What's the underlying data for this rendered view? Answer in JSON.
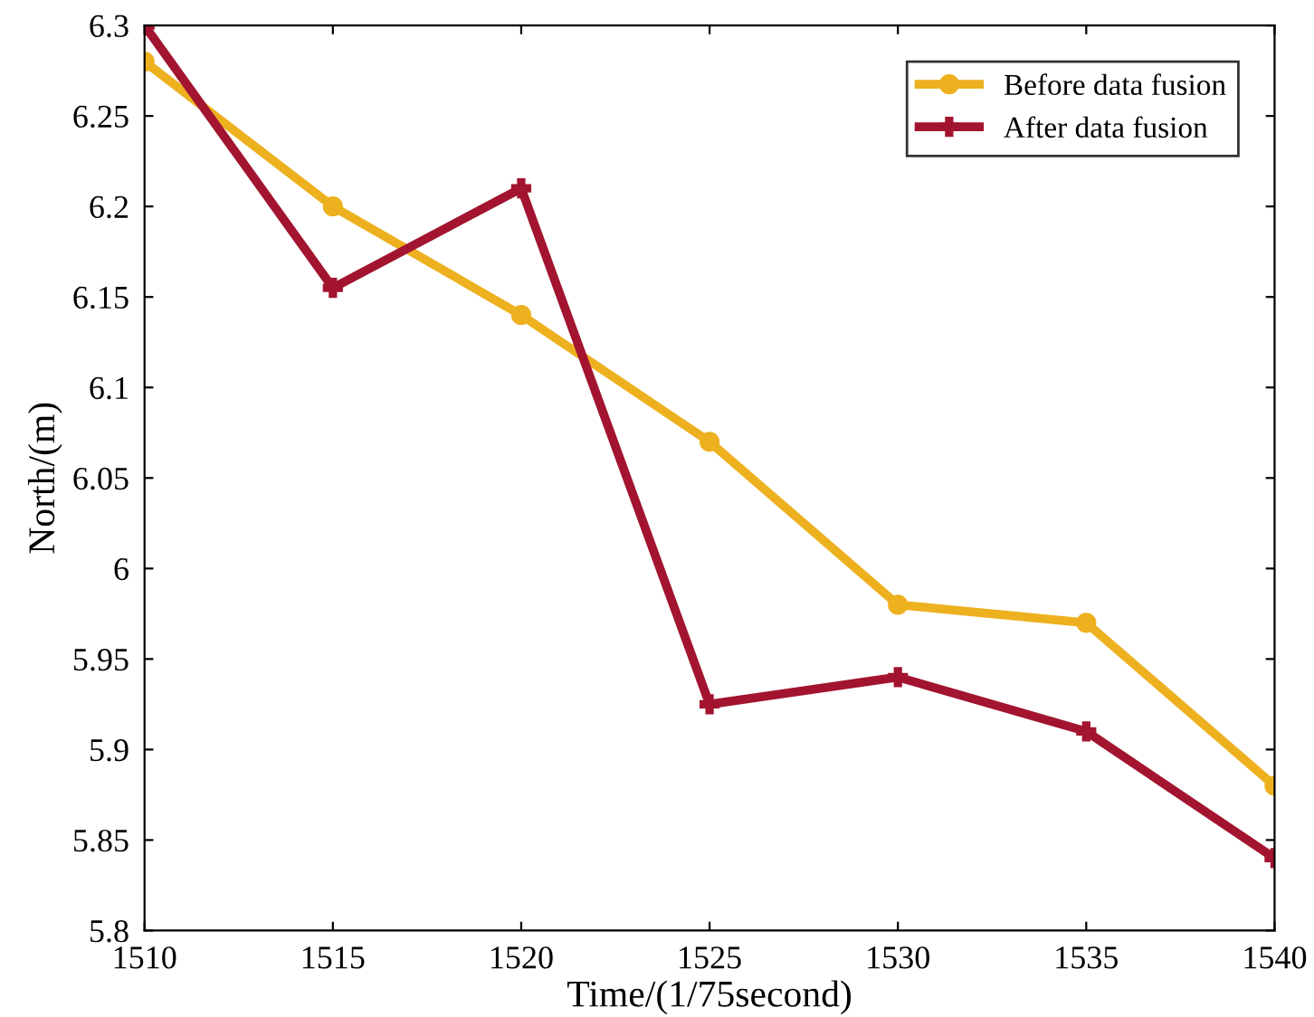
{
  "chart_data": {
    "type": "line",
    "xlabel": "Time/(1/75second)",
    "ylabel": "North/(m)",
    "x": [
      1510,
      1515,
      1520,
      1525,
      1530,
      1535,
      1540
    ],
    "series": [
      {
        "name": "Before data fusion",
        "color": "#edb120",
        "marker": "circle",
        "values": [
          6.28,
          6.2,
          6.14,
          6.07,
          5.98,
          5.97,
          5.88
        ]
      },
      {
        "name": "After data fusion",
        "color": "#a2142f",
        "marker": "cross",
        "values": [
          6.3,
          6.155,
          6.21,
          5.925,
          5.94,
          5.91,
          5.84
        ]
      }
    ],
    "xlim": [
      1510,
      1540
    ],
    "xticks": [
      1510,
      1515,
      1520,
      1525,
      1530,
      1535,
      1540
    ],
    "ylim": [
      5.8,
      6.3
    ],
    "yticks": [
      5.8,
      5.85,
      5.9,
      5.95,
      6,
      6.05,
      6.1,
      6.15,
      6.2,
      6.25,
      6.3
    ],
    "grid": false,
    "legend": "top right",
    "line_style": "solid"
  }
}
